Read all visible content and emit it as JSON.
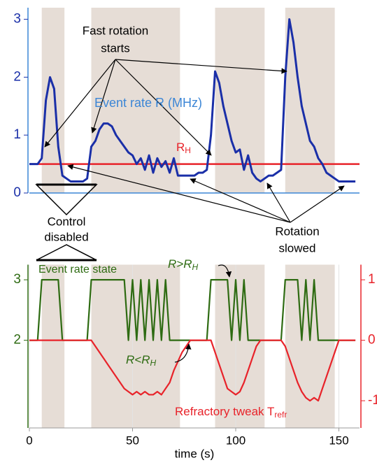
{
  "chart_data": [
    {
      "type": "line",
      "xlim": [
        0,
        160
      ],
      "ylim": [
        0,
        3.2
      ],
      "yticks": [
        0,
        1,
        2,
        3
      ],
      "shaded_intervals": [
        [
          6,
          17
        ],
        [
          30,
          73
        ],
        [
          90,
          114
        ],
        [
          124,
          148
        ]
      ],
      "x": [
        0,
        2,
        4,
        6,
        8,
        10,
        12,
        14,
        16,
        18,
        20,
        22,
        24,
        26,
        28,
        30,
        32,
        34,
        36,
        38,
        40,
        42,
        44,
        46,
        48,
        50,
        52,
        54,
        56,
        58,
        60,
        62,
        64,
        66,
        68,
        70,
        72,
        74,
        76,
        78,
        80,
        82,
        84,
        86,
        88,
        90,
        92,
        94,
        96,
        98,
        100,
        102,
        104,
        106,
        108,
        110,
        112,
        114,
        116,
        118,
        120,
        122,
        124,
        126,
        128,
        130,
        132,
        134,
        136,
        138,
        140,
        142,
        144,
        146,
        148,
        150,
        152,
        154,
        156,
        158
      ],
      "series": [
        {
          "name": "Event rate R (MHz)",
          "color": "#1a2fa8",
          "values": [
            0.5,
            0.5,
            0.5,
            0.6,
            1.6,
            2.0,
            1.8,
            0.8,
            0.3,
            0.25,
            0.2,
            0.2,
            0.2,
            0.2,
            0.25,
            0.8,
            0.9,
            1.1,
            1.2,
            1.2,
            1.15,
            1.0,
            0.9,
            0.8,
            0.7,
            0.65,
            0.5,
            0.6,
            0.4,
            0.65,
            0.35,
            0.6,
            0.45,
            0.55,
            0.35,
            0.6,
            0.3,
            0.3,
            0.3,
            0.3,
            0.3,
            0.35,
            0.35,
            0.4,
            1.0,
            2.1,
            1.9,
            1.5,
            1.2,
            0.9,
            0.7,
            0.75,
            0.4,
            0.65,
            0.35,
            0.25,
            0.2,
            0.25,
            0.3,
            0.3,
            0.35,
            0.4,
            2.0,
            3.0,
            2.6,
            2.0,
            1.5,
            1.2,
            0.9,
            0.8,
            0.6,
            0.5,
            0.35,
            0.3,
            0.25,
            0.2,
            0.2,
            0.2,
            0.2,
            0.2
          ]
        }
      ],
      "threshold": {
        "value": 0.5,
        "color": "#e8232a",
        "label": {
          "main": "R",
          "sub": "H"
        }
      },
      "annotations": {
        "fast_rotation": [
          "Fast rotation",
          "starts"
        ],
        "control_disabled": [
          "Control",
          "disabled"
        ],
        "rotation_slowed": [
          "Rotation",
          "slowed"
        ]
      }
    },
    {
      "type": "line",
      "xlim": [
        0,
        160
      ],
      "ylim": [
        0.55,
        3.25
      ],
      "y2lim": [
        -1.45,
        1.25
      ],
      "yticks": [
        2,
        3
      ],
      "y2ticks": [
        -1,
        0,
        1
      ],
      "xticks": [
        0,
        50,
        100,
        150
      ],
      "xlabel": "time (s)",
      "x": [
        0,
        2,
        4,
        6,
        8,
        10,
        12,
        14,
        16,
        18,
        20,
        22,
        24,
        26,
        28,
        30,
        32,
        34,
        36,
        38,
        40,
        42,
        44,
        46,
        48,
        50,
        52,
        54,
        56,
        58,
        60,
        62,
        64,
        66,
        68,
        70,
        72,
        74,
        76,
        78,
        80,
        82,
        84,
        86,
        88,
        90,
        92,
        94,
        96,
        98,
        100,
        102,
        104,
        106,
        108,
        110,
        112,
        114,
        116,
        118,
        120,
        122,
        124,
        126,
        128,
        130,
        132,
        134,
        136,
        138,
        140,
        142,
        144,
        146,
        148,
        150,
        152,
        154,
        156,
        158
      ],
      "series": [
        {
          "name": "Event rate state",
          "color": "#2e6b12",
          "values": [
            2,
            2,
            2,
            3,
            3,
            3,
            3,
            3,
            2,
            2,
            2,
            2,
            2,
            2,
            2,
            3,
            3,
            3,
            3,
            3,
            3,
            3,
            3,
            3,
            2,
            3,
            2,
            3,
            2,
            3,
            2,
            3,
            2,
            3,
            2,
            2,
            2,
            2,
            2,
            2,
            2,
            2,
            2,
            2,
            3,
            3,
            3,
            3,
            3,
            2,
            3,
            2,
            3,
            2,
            2,
            2,
            2,
            2,
            2,
            2,
            2,
            2,
            3,
            3,
            3,
            3,
            2,
            3,
            2,
            3,
            2,
            2,
            2,
            2,
            2,
            2,
            2,
            2,
            2,
            2
          ]
        },
        {
          "name": {
            "main": "Refractory tweak T",
            "sub": "refr"
          },
          "color": "#e8232a",
          "axis": "y2",
          "values": [
            0,
            0,
            0,
            0,
            0,
            0,
            0,
            0,
            0,
            0,
            0,
            0,
            0,
            0,
            0,
            0,
            -0.1,
            -0.2,
            -0.3,
            -0.4,
            -0.5,
            -0.6,
            -0.7,
            -0.8,
            -0.85,
            -0.9,
            -0.85,
            -0.9,
            -0.85,
            -0.9,
            -0.9,
            -0.85,
            -0.9,
            -0.8,
            -0.7,
            -0.5,
            -0.35,
            -0.2,
            -0.1,
            0,
            0,
            0,
            0,
            0,
            0,
            -0.2,
            -0.4,
            -0.6,
            -0.8,
            -0.85,
            -0.9,
            -0.85,
            -0.7,
            -0.5,
            -0.3,
            -0.1,
            0,
            0,
            0,
            0,
            0,
            0,
            -0.1,
            -0.3,
            -0.5,
            -0.7,
            -0.85,
            -0.95,
            -1.0,
            -0.95,
            -1.0,
            -0.8,
            -0.6,
            -0.4,
            -0.2,
            0,
            0,
            0,
            0,
            0
          ]
        }
      ],
      "annotations": {
        "above": {
          "main": "R>R",
          "sub": "H"
        },
        "below": {
          "main": "R<R",
          "sub": "H"
        }
      }
    }
  ]
}
